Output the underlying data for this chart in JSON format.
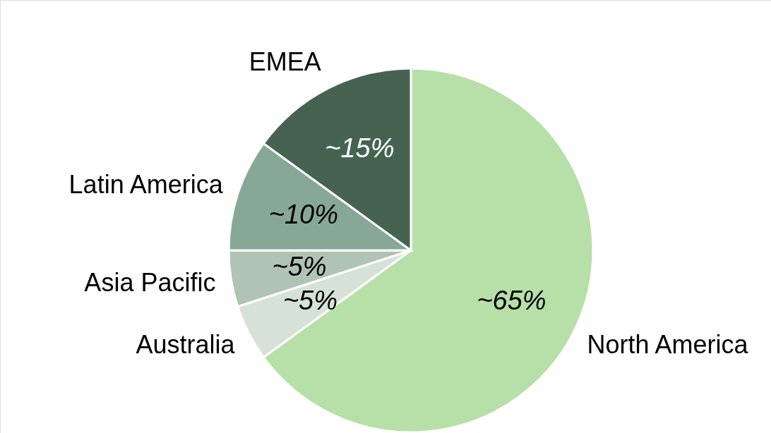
{
  "chart_data": {
    "type": "pie",
    "categories": [
      "North America",
      "Australia",
      "Asia Pacific",
      "Latin America",
      "EMEA"
    ],
    "values": [
      65,
      5,
      5,
      10,
      15
    ],
    "colors": [
      "#b7dfa8",
      "#d6e2d8",
      "#afc4b5",
      "#87a896",
      "#466352"
    ],
    "value_labels": [
      "~65%",
      "~5%",
      "~5%",
      "~10%",
      "~15%"
    ]
  }
}
